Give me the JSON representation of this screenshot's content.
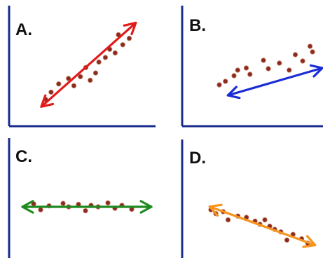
{
  "panels": [
    {
      "label": "A."
    },
    {
      "label": "B."
    },
    {
      "label": "C."
    },
    {
      "label": "D."
    }
  ],
  "colors": {
    "axes": "#1a2c8c",
    "points": "#8b2a1e",
    "point_outline": "#c98a70",
    "arrow_a": "#e11b1b",
    "arrow_b": "#1a2cd6",
    "arrow_c": "#1f8a1f",
    "arrow_d": "#f7941d"
  },
  "chart_data": [
    {
      "type": "scatter",
      "title": "A.",
      "xlabel": "",
      "ylabel": "",
      "xlim": [
        0,
        10
      ],
      "ylim": [
        0,
        10
      ],
      "grid": false,
      "points": [
        {
          "x": 1.3,
          "y": 1.4
        },
        {
          "x": 1.8,
          "y": 2.2
        },
        {
          "x": 2.5,
          "y": 3.1
        },
        {
          "x": 3.4,
          "y": 3.7
        },
        {
          "x": 3.9,
          "y": 2.9
        },
        {
          "x": 4.5,
          "y": 3.9
        },
        {
          "x": 5.0,
          "y": 4.9
        },
        {
          "x": 5.4,
          "y": 3.5
        },
        {
          "x": 5.9,
          "y": 4.3
        },
        {
          "x": 6.2,
          "y": 5.5
        },
        {
          "x": 6.8,
          "y": 6.0
        },
        {
          "x": 7.2,
          "y": 6.9
        },
        {
          "x": 7.7,
          "y": 6.5
        },
        {
          "x": 8.0,
          "y": 8.5
        },
        {
          "x": 8.4,
          "y": 7.4
        },
        {
          "x": 9.0,
          "y": 8.1
        }
      ],
      "trend_arrow": {
        "x1": 0.9,
        "y1": 0.6,
        "x2": 9.6,
        "y2": 9.8,
        "double_headed": true
      }
    },
    {
      "type": "scatter",
      "title": "B.",
      "xlabel": "",
      "ylabel": "",
      "xlim": [
        0,
        10
      ],
      "ylim": [
        0,
        10
      ],
      "grid": false,
      "points": [
        {
          "x": 1.6,
          "y": 3.9
        },
        {
          "x": 2.1,
          "y": 4.4
        },
        {
          "x": 2.8,
          "y": 5.2
        },
        {
          "x": 3.1,
          "y": 6.0
        },
        {
          "x": 3.8,
          "y": 6.3
        },
        {
          "x": 4.1,
          "y": 5.4
        },
        {
          "x": 5.2,
          "y": 7.4
        },
        {
          "x": 5.6,
          "y": 6.2
        },
        {
          "x": 6.5,
          "y": 7.0
        },
        {
          "x": 7.3,
          "y": 6.0
        },
        {
          "x": 7.8,
          "y": 8.2
        },
        {
          "x": 8.4,
          "y": 7.3
        },
        {
          "x": 9.0,
          "y": 9.4
        },
        {
          "x": 9.2,
          "y": 8.6
        }
      ],
      "trend_arrow": {
        "x1": 2.3,
        "y1": 2.4,
        "x2": 10.0,
        "y2": 6.3,
        "double_headed": true
      }
    },
    {
      "type": "scatter",
      "title": "C.",
      "xlabel": "",
      "ylabel": "",
      "xlim": [
        0,
        10
      ],
      "ylim": [
        0,
        10
      ],
      "grid": false,
      "points": [
        {
          "x": 1.3,
          "y": 5.6
        },
        {
          "x": 1.8,
          "y": 4.4
        },
        {
          "x": 2.4,
          "y": 5.2
        },
        {
          "x": 3.4,
          "y": 5.7
        },
        {
          "x": 3.8,
          "y": 5.0
        },
        {
          "x": 4.5,
          "y": 5.5
        },
        {
          "x": 5.0,
          "y": 4.2
        },
        {
          "x": 5.4,
          "y": 5.3
        },
        {
          "x": 5.9,
          "y": 5.0
        },
        {
          "x": 6.6,
          "y": 5.8
        },
        {
          "x": 7.1,
          "y": 4.7
        },
        {
          "x": 7.6,
          "y": 5.3
        },
        {
          "x": 8.3,
          "y": 4.5
        }
      ],
      "trend_arrow": {
        "x1": 0.5,
        "y1": 5.0,
        "x2": 9.7,
        "y2": 5.0,
        "double_headed": true
      }
    },
    {
      "type": "scatter",
      "title": "D.",
      "xlabel": "",
      "ylabel": "",
      "xlim": [
        0,
        10
      ],
      "ylim": [
        0,
        10
      ],
      "grid": false,
      "points": [
        {
          "x": 1.2,
          "y": 6.2
        },
        {
          "x": 1.6,
          "y": 5.6
        },
        {
          "x": 2.2,
          "y": 5.9
        },
        {
          "x": 2.6,
          "y": 4.6
        },
        {
          "x": 3.4,
          "y": 5.2
        },
        {
          "x": 4.1,
          "y": 5.0
        },
        {
          "x": 4.8,
          "y": 4.4
        },
        {
          "x": 5.2,
          "y": 3.9
        },
        {
          "x": 5.6,
          "y": 4.6
        },
        {
          "x": 6.0,
          "y": 3.6
        },
        {
          "x": 6.4,
          "y": 3.1
        },
        {
          "x": 6.9,
          "y": 2.7
        },
        {
          "x": 7.4,
          "y": 1.4
        },
        {
          "x": 7.9,
          "y": 2.3
        },
        {
          "x": 8.6,
          "y": 1.6
        },
        {
          "x": 9.1,
          "y": 0.9
        }
      ],
      "trend_arrow": {
        "x1": 1.1,
        "y1": 6.7,
        "x2": 9.7,
        "y2": 0.6,
        "double_headed": true
      }
    }
  ]
}
